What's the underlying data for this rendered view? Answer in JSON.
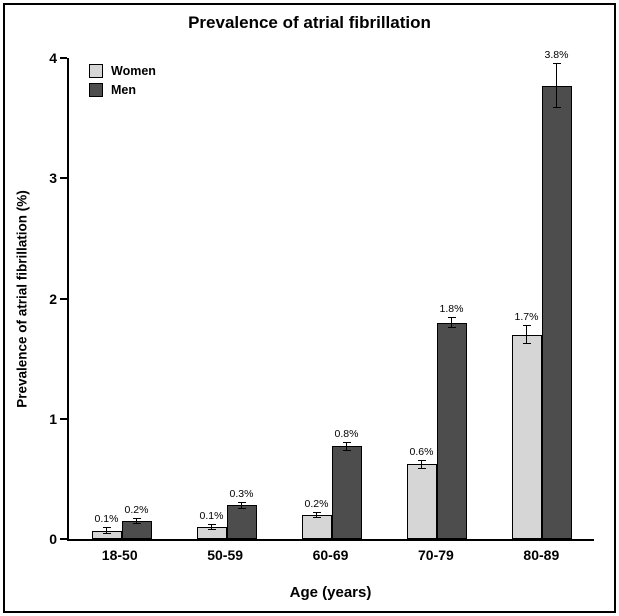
{
  "chart_data": {
    "type": "bar",
    "title": "Prevalence of atrial fibrillation",
    "categories": [
      "18-50",
      "50-59",
      "60-69",
      "70-79",
      "80-89"
    ],
    "series": [
      {
        "name": "Women",
        "color": "#d6d6d6",
        "values": [
          0.07,
          0.1,
          0.2,
          0.62,
          1.7
        ],
        "errors": [
          0.02,
          0.02,
          0.02,
          0.03,
          0.07
        ],
        "labels": [
          "0.1%",
          "0.1%",
          "0.2%",
          "0.6%",
          "1.7%"
        ]
      },
      {
        "name": "Men",
        "color": "#4d4d4d",
        "values": [
          0.15,
          0.28,
          0.77,
          1.8,
          3.77
        ],
        "errors": [
          0.02,
          0.02,
          0.03,
          0.04,
          0.18
        ],
        "labels": [
          "0.2%",
          "0.3%",
          "0.8%",
          "1.8%",
          "3.8%"
        ]
      }
    ],
    "xlabel": "Age (years)",
    "ylabel": "Prevalence of atrial fibrillation (%)",
    "ylim": [
      0,
      4
    ],
    "yticks": [
      0,
      1,
      2,
      3,
      4
    ],
    "legend_position": "top-left",
    "grid": false,
    "axis_color": "#000000",
    "background_color": "#ffffff"
  }
}
